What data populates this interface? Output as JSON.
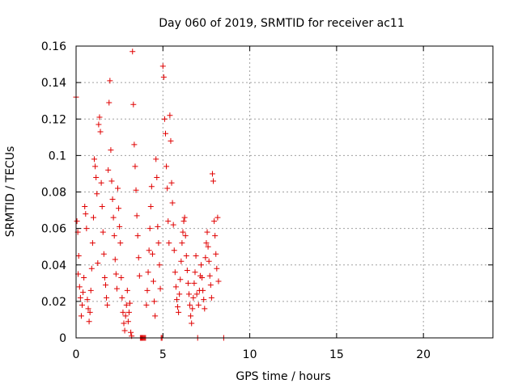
{
  "chart_data": {
    "type": "scatter",
    "title": "Day 060 of 2019, SRMTID for receiver ac11",
    "xlabel": "GPS time / hours",
    "ylabel": "SRMTID / TECUs",
    "xlim": [
      0,
      24
    ],
    "ylim": [
      0,
      0.16
    ],
    "xticks": [
      0,
      5,
      10,
      15,
      20
    ],
    "xtick_labels": [
      "0",
      "5",
      "10",
      "15",
      "20"
    ],
    "yticks": [
      0,
      0.02,
      0.04,
      0.06,
      0.08,
      0.1,
      0.12,
      0.14,
      0.16
    ],
    "ytick_labels": [
      "0",
      "0.02",
      "0.04",
      "0.06",
      "0.08",
      "0.1",
      "0.12",
      "0.14",
      "0.16"
    ],
    "grid": true,
    "marker": "+",
    "color": "#e00000",
    "series": [
      {
        "name": "SRMTID",
        "points": [
          [
            0.0,
            0.132
          ],
          [
            0.05,
            0.064
          ],
          [
            0.1,
            0.058
          ],
          [
            0.12,
            0.035
          ],
          [
            0.15,
            0.045
          ],
          [
            0.2,
            0.028
          ],
          [
            0.25,
            0.022
          ],
          [
            0.3,
            0.012
          ],
          [
            0.35,
            0.018
          ],
          [
            0.4,
            0.025
          ],
          [
            0.45,
            0.033
          ],
          [
            0.5,
            0.072
          ],
          [
            0.55,
            0.068
          ],
          [
            0.6,
            0.06
          ],
          [
            0.65,
            0.021
          ],
          [
            0.7,
            0.016
          ],
          [
            0.75,
            0.009
          ],
          [
            0.8,
            0.014
          ],
          [
            0.85,
            0.026
          ],
          [
            0.9,
            0.038
          ],
          [
            0.95,
            0.052
          ],
          [
            1.0,
            0.066
          ],
          [
            1.05,
            0.098
          ],
          [
            1.1,
            0.094
          ],
          [
            1.15,
            0.088
          ],
          [
            1.2,
            0.079
          ],
          [
            1.25,
            0.041
          ],
          [
            1.3,
            0.117
          ],
          [
            1.35,
            0.121
          ],
          [
            1.4,
            0.113
          ],
          [
            1.45,
            0.085
          ],
          [
            1.5,
            0.072
          ],
          [
            1.55,
            0.058
          ],
          [
            1.6,
            0.046
          ],
          [
            1.65,
            0.033
          ],
          [
            1.7,
            0.029
          ],
          [
            1.75,
            0.022
          ],
          [
            1.8,
            0.018
          ],
          [
            1.85,
            0.092
          ],
          [
            1.9,
            0.129
          ],
          [
            1.95,
            0.141
          ],
          [
            2.0,
            0.103
          ],
          [
            2.05,
            0.086
          ],
          [
            2.1,
            0.076
          ],
          [
            2.15,
            0.066
          ],
          [
            2.2,
            0.056
          ],
          [
            2.25,
            0.043
          ],
          [
            2.3,
            0.035
          ],
          [
            2.35,
            0.027
          ],
          [
            2.4,
            0.082
          ],
          [
            2.45,
            0.071
          ],
          [
            2.5,
            0.061
          ],
          [
            2.55,
            0.052
          ],
          [
            2.6,
            0.033
          ],
          [
            2.65,
            0.022
          ],
          [
            2.7,
            0.014
          ],
          [
            2.75,
            0.008
          ],
          [
            2.8,
            0.004
          ],
          [
            2.85,
            0.012
          ],
          [
            2.9,
            0.018
          ],
          [
            2.95,
            0.026
          ],
          [
            3.0,
            0.009
          ],
          [
            3.05,
            0.014
          ],
          [
            3.1,
            0.019
          ],
          [
            3.15,
            0.003
          ],
          [
            3.2,
            0.001
          ],
          [
            3.25,
            0.157
          ],
          [
            3.3,
            0.128
          ],
          [
            3.35,
            0.106
          ],
          [
            3.4,
            0.094
          ],
          [
            3.45,
            0.081
          ],
          [
            3.5,
            0.067
          ],
          [
            3.55,
            0.056
          ],
          [
            3.6,
            0.044
          ],
          [
            3.65,
            0.034
          ],
          [
            3.7,
            0.0
          ],
          [
            3.75,
            0.0
          ],
          [
            3.8,
            0.0
          ],
          [
            3.85,
            0.0
          ],
          [
            3.9,
            0.0
          ],
          [
            3.95,
            0.0
          ],
          [
            4.0,
            0.0
          ],
          [
            4.05,
            0.018
          ],
          [
            4.1,
            0.026
          ],
          [
            4.15,
            0.036
          ],
          [
            4.2,
            0.048
          ],
          [
            4.25,
            0.06
          ],
          [
            4.3,
            0.072
          ],
          [
            4.35,
            0.083
          ],
          [
            4.4,
            0.046
          ],
          [
            4.45,
            0.031
          ],
          [
            4.5,
            0.02
          ],
          [
            4.55,
            0.012
          ],
          [
            4.6,
            0.098
          ],
          [
            4.65,
            0.088
          ],
          [
            4.7,
            0.061
          ],
          [
            4.75,
            0.052
          ],
          [
            4.8,
            0.04
          ],
          [
            4.85,
            0.027
          ],
          [
            4.9,
            0.0
          ],
          [
            4.95,
            0.0
          ],
          [
            5.0,
            0.149
          ],
          [
            5.05,
            0.143
          ],
          [
            5.1,
            0.12
          ],
          [
            5.15,
            0.112
          ],
          [
            5.2,
            0.094
          ],
          [
            5.25,
            0.082
          ],
          [
            5.3,
            0.064
          ],
          [
            5.35,
            0.052
          ],
          [
            5.4,
            0.122
          ],
          [
            5.45,
            0.108
          ],
          [
            5.5,
            0.085
          ],
          [
            5.55,
            0.074
          ],
          [
            5.6,
            0.062
          ],
          [
            5.65,
            0.048
          ],
          [
            5.7,
            0.036
          ],
          [
            5.75,
            0.028
          ],
          [
            5.8,
            0.021
          ],
          [
            5.85,
            0.017
          ],
          [
            5.9,
            0.014
          ],
          [
            5.95,
            0.024
          ],
          [
            6.0,
            0.032
          ],
          [
            6.05,
            0.042
          ],
          [
            6.1,
            0.052
          ],
          [
            6.15,
            0.058
          ],
          [
            6.2,
            0.064
          ],
          [
            6.25,
            0.066
          ],
          [
            6.3,
            0.056
          ],
          [
            6.35,
            0.045
          ],
          [
            6.4,
            0.037
          ],
          [
            6.45,
            0.03
          ],
          [
            6.5,
            0.024
          ],
          [
            6.55,
            0.018
          ],
          [
            6.6,
            0.012
          ],
          [
            6.65,
            0.008
          ],
          [
            6.7,
            0.016
          ],
          [
            6.75,
            0.022
          ],
          [
            6.8,
            0.03
          ],
          [
            6.85,
            0.036
          ],
          [
            6.9,
            0.045
          ],
          [
            6.95,
            0.024
          ],
          [
            7.0,
            0.0
          ],
          [
            7.05,
            0.018
          ],
          [
            7.1,
            0.026
          ],
          [
            7.15,
            0.034
          ],
          [
            7.2,
            0.04
          ],
          [
            7.25,
            0.033
          ],
          [
            7.3,
            0.026
          ],
          [
            7.35,
            0.021
          ],
          [
            7.4,
            0.016
          ],
          [
            7.45,
            0.044
          ],
          [
            7.5,
            0.052
          ],
          [
            7.55,
            0.058
          ],
          [
            7.6,
            0.05
          ],
          [
            7.65,
            0.042
          ],
          [
            7.7,
            0.034
          ],
          [
            7.75,
            0.029
          ],
          [
            7.8,
            0.022
          ],
          [
            7.85,
            0.09
          ],
          [
            7.9,
            0.086
          ],
          [
            7.95,
            0.064
          ],
          [
            8.0,
            0.056
          ],
          [
            8.05,
            0.046
          ],
          [
            8.1,
            0.038
          ],
          [
            8.15,
            0.066
          ],
          [
            8.2,
            0.031
          ],
          [
            8.5,
            0.0
          ]
        ]
      }
    ]
  }
}
